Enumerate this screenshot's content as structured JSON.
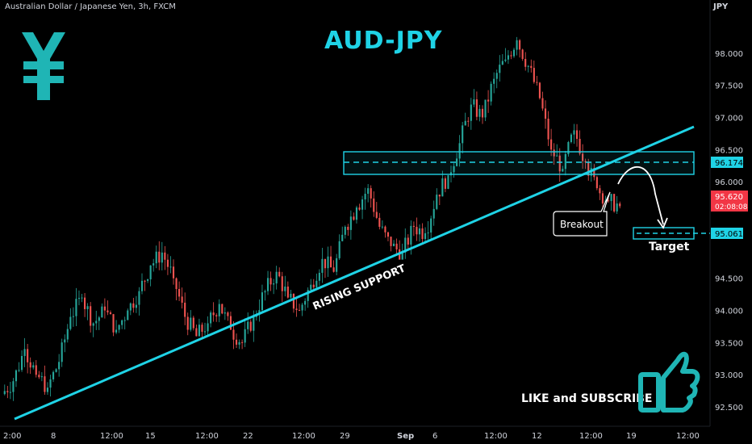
{
  "header": {
    "symbol_line": "Australian Dollar / Japanese Yen, 3h, FXCM",
    "currency": "JPY"
  },
  "title": "AUD-JPY",
  "annotations": {
    "trendline_label": "RISING SUPPORT",
    "breakout_label": "Breakout",
    "target_label": "Target",
    "cta": "LIKE and SUBSCRIBE"
  },
  "price_tags": {
    "resistance": "96.174",
    "current": "95.620",
    "countdown": "02:08:08",
    "target": "95.061"
  },
  "icons": {
    "currency_symbol": "yen-icon",
    "thumb": "thumbs-up-icon"
  },
  "colors": {
    "background": "#000000",
    "up_candle": "#26a69a",
    "down_candle": "#ef5350",
    "accent": "#1fd3e6",
    "current_tag": "#f23645"
  },
  "chart_data": {
    "type": "candlestick",
    "symbol": "AUDJPY",
    "timeframe": "3h",
    "ylim": [
      92.2,
      98.7
    ],
    "y_ticks": [
      92.5,
      93.0,
      93.5,
      94.0,
      94.5,
      95.0,
      95.5,
      96.0,
      96.5,
      97.0,
      97.5,
      98.0
    ],
    "y_tick_labels": [
      "92.500",
      "93.000",
      "93.500",
      "94.000",
      "94.500",
      "",
      "",
      "96.000",
      "96.500",
      "97.000",
      "97.500",
      "98.000"
    ],
    "x_tick_labels": [
      "2:00",
      "8",
      "12:00",
      "15",
      "12:00",
      "22",
      "12:00",
      "29",
      "Sep",
      "6",
      "12:00",
      "12",
      "12:00",
      "19",
      "12:00"
    ],
    "candles": [
      {
        "o": 92.7,
        "h": 93.1,
        "l": 92.3,
        "c": 92.9
      },
      {
        "o": 92.9,
        "h": 93.7,
        "l": 92.6,
        "c": 93.4
      },
      {
        "o": 93.4,
        "h": 93.6,
        "l": 92.8,
        "c": 93.0
      },
      {
        "o": 93.0,
        "h": 93.5,
        "l": 92.6,
        "c": 92.8
      },
      {
        "o": 92.8,
        "h": 93.4,
        "l": 92.3,
        "c": 93.2
      },
      {
        "o": 93.2,
        "h": 94.3,
        "l": 93.0,
        "c": 93.9
      },
      {
        "o": 93.9,
        "h": 94.5,
        "l": 93.6,
        "c": 94.2
      },
      {
        "o": 94.2,
        "h": 94.4,
        "l": 93.5,
        "c": 93.8
      },
      {
        "o": 93.8,
        "h": 94.3,
        "l": 93.5,
        "c": 94.0
      },
      {
        "o": 94.0,
        "h": 94.4,
        "l": 93.6,
        "c": 93.7
      },
      {
        "o": 93.7,
        "h": 94.2,
        "l": 93.4,
        "c": 94.0
      },
      {
        "o": 94.0,
        "h": 94.5,
        "l": 93.8,
        "c": 94.3
      },
      {
        "o": 94.3,
        "h": 94.9,
        "l": 94.1,
        "c": 94.7
      },
      {
        "o": 94.7,
        "h": 95.1,
        "l": 94.5,
        "c": 94.9
      },
      {
        "o": 94.9,
        "h": 95.0,
        "l": 94.4,
        "c": 94.5
      },
      {
        "o": 94.5,
        "h": 94.7,
        "l": 93.7,
        "c": 93.9
      },
      {
        "o": 93.9,
        "h": 94.1,
        "l": 93.4,
        "c": 93.6
      },
      {
        "o": 93.6,
        "h": 94.0,
        "l": 93.4,
        "c": 93.8
      },
      {
        "o": 93.8,
        "h": 94.2,
        "l": 93.6,
        "c": 94.1
      },
      {
        "o": 94.1,
        "h": 94.3,
        "l": 93.6,
        "c": 93.7
      },
      {
        "o": 93.7,
        "h": 93.9,
        "l": 93.4,
        "c": 93.5
      },
      {
        "o": 93.5,
        "h": 94.0,
        "l": 93.4,
        "c": 93.9
      },
      {
        "o": 93.9,
        "h": 94.4,
        "l": 93.7,
        "c": 94.3
      },
      {
        "o": 94.3,
        "h": 94.8,
        "l": 94.2,
        "c": 94.6
      },
      {
        "o": 94.6,
        "h": 94.8,
        "l": 94.1,
        "c": 94.2
      },
      {
        "o": 94.2,
        "h": 94.4,
        "l": 93.9,
        "c": 94.0
      },
      {
        "o": 94.0,
        "h": 94.5,
        "l": 93.9,
        "c": 94.4
      },
      {
        "o": 94.4,
        "h": 95.0,
        "l": 94.3,
        "c": 94.8
      },
      {
        "o": 94.8,
        "h": 95.2,
        "l": 94.5,
        "c": 94.6
      },
      {
        "o": 94.6,
        "h": 95.5,
        "l": 94.5,
        "c": 95.3
      },
      {
        "o": 95.3,
        "h": 95.8,
        "l": 95.1,
        "c": 95.6
      },
      {
        "o": 95.6,
        "h": 96.1,
        "l": 95.4,
        "c": 95.9
      },
      {
        "o": 95.9,
        "h": 96.1,
        "l": 95.2,
        "c": 95.3
      },
      {
        "o": 95.3,
        "h": 95.4,
        "l": 94.9,
        "c": 95.0
      },
      {
        "o": 95.0,
        "h": 95.2,
        "l": 94.8,
        "c": 94.9
      },
      {
        "o": 94.9,
        "h": 95.4,
        "l": 94.8,
        "c": 95.3
      },
      {
        "o": 95.3,
        "h": 95.6,
        "l": 95.0,
        "c": 95.2
      },
      {
        "o": 95.2,
        "h": 95.9,
        "l": 95.1,
        "c": 95.8
      },
      {
        "o": 95.8,
        "h": 96.3,
        "l": 95.6,
        "c": 96.1
      },
      {
        "o": 96.1,
        "h": 96.9,
        "l": 95.9,
        "c": 96.6
      },
      {
        "o": 96.6,
        "h": 97.4,
        "l": 96.4,
        "c": 97.2
      },
      {
        "o": 97.2,
        "h": 97.6,
        "l": 96.9,
        "c": 97.0
      },
      {
        "o": 97.0,
        "h": 97.8,
        "l": 96.8,
        "c": 97.6
      },
      {
        "o": 97.6,
        "h": 98.2,
        "l": 97.4,
        "c": 97.9
      },
      {
        "o": 97.9,
        "h": 98.4,
        "l": 97.8,
        "c": 98.2
      },
      {
        "o": 98.2,
        "h": 98.6,
        "l": 97.7,
        "c": 97.8
      },
      {
        "o": 97.8,
        "h": 97.9,
        "l": 97.2,
        "c": 97.3
      },
      {
        "o": 97.3,
        "h": 97.4,
        "l": 96.4,
        "c": 96.5
      },
      {
        "o": 96.5,
        "h": 96.6,
        "l": 96.0,
        "c": 96.2
      },
      {
        "o": 96.2,
        "h": 96.9,
        "l": 96.1,
        "c": 96.8
      },
      {
        "o": 96.8,
        "h": 96.9,
        "l": 96.2,
        "c": 96.3
      },
      {
        "o": 96.3,
        "h": 96.4,
        "l": 95.7,
        "c": 95.9
      },
      {
        "o": 95.9,
        "h": 96.2,
        "l": 95.6,
        "c": 95.7
      },
      {
        "o": 95.7,
        "h": 95.8,
        "l": 95.5,
        "c": 95.62
      }
    ]
  }
}
